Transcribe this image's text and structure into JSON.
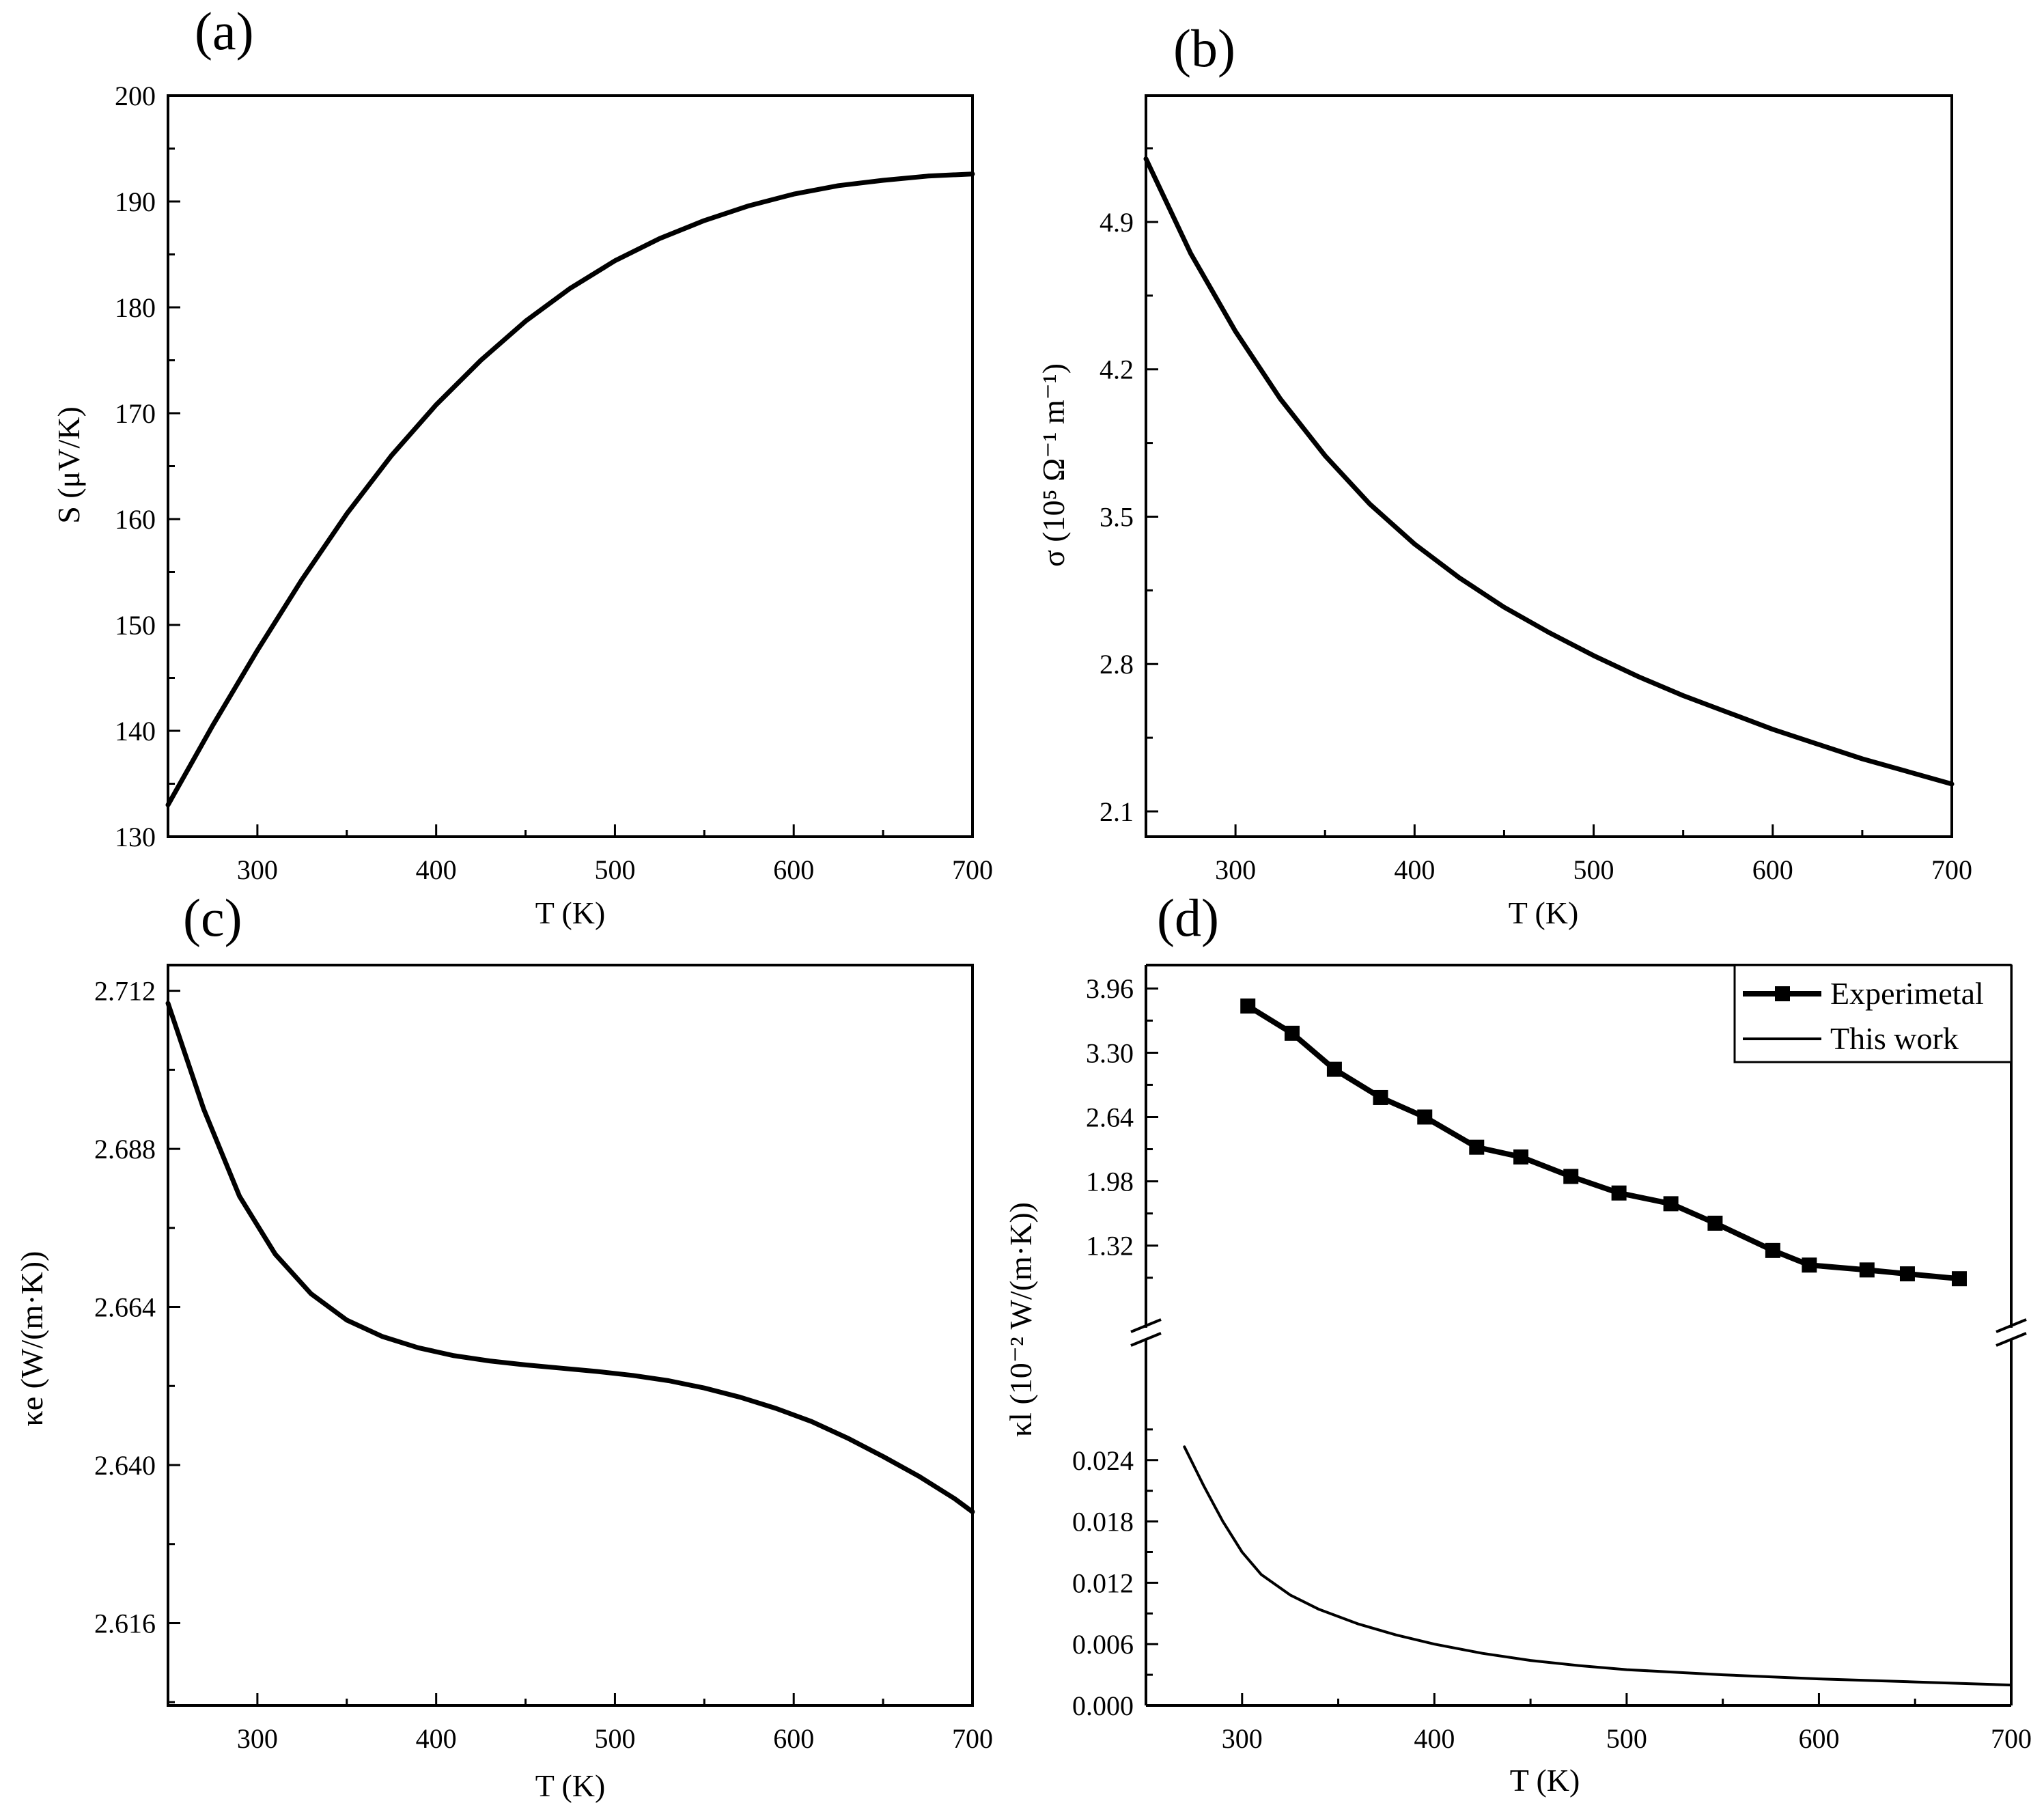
{
  "figure": {
    "background": "#ffffff",
    "line_color": "#000000"
  },
  "chart_data": [
    {
      "panel": "(a)",
      "type": "line",
      "title": "",
      "xlabel": "T (K)",
      "ylabel": "S (μV/K)",
      "xlim": [
        250,
        700
      ],
      "ylim": [
        130,
        200
      ],
      "xticks": [
        "300",
        "400",
        "500",
        "600",
        "700"
      ],
      "yticks": [
        "130",
        "140",
        "150",
        "160",
        "170",
        "180",
        "190",
        "200"
      ],
      "series": [
        {
          "name": "S",
          "x": [
            250,
            275,
            300,
            325,
            350,
            375,
            400,
            425,
            450,
            475,
            500,
            525,
            550,
            575,
            600,
            625,
            650,
            675,
            700
          ],
          "y": [
            133.0,
            140.5,
            147.6,
            154.3,
            160.5,
            166.0,
            170.8,
            175.0,
            178.7,
            181.8,
            184.4,
            186.5,
            188.2,
            189.6,
            190.7,
            191.5,
            192.0,
            192.4,
            192.6
          ]
        }
      ]
    },
    {
      "panel": "(b)",
      "type": "line",
      "title": "",
      "xlabel": "T (K)",
      "ylabel": "σ (10⁵ Ω⁻¹ m⁻¹)",
      "xlim": [
        250,
        700
      ],
      "ylim": [
        1.98,
        5.5
      ],
      "xticks": [
        "300",
        "400",
        "500",
        "600",
        "700"
      ],
      "yticks": [
        "2.1",
        "2.8",
        "3.5",
        "4.2",
        "4.9"
      ],
      "series": [
        {
          "name": "σ",
          "x": [
            250,
            275,
            300,
            325,
            350,
            375,
            400,
            425,
            450,
            475,
            500,
            525,
            550,
            575,
            600,
            625,
            650,
            675,
            700
          ],
          "y": [
            5.2,
            4.75,
            4.38,
            4.06,
            3.79,
            3.56,
            3.37,
            3.21,
            3.07,
            2.95,
            2.84,
            2.74,
            2.65,
            2.57,
            2.49,
            2.42,
            2.35,
            2.29,
            2.23
          ]
        }
      ]
    },
    {
      "panel": "(c)",
      "type": "line",
      "title": "",
      "xlabel": "T (K)",
      "ylabel": "κe (W/(m·K))",
      "xlim": [
        250,
        700
      ],
      "ylim": [
        2.6035,
        2.7159
      ],
      "xticks": [
        "300",
        "400",
        "500",
        "600",
        "700"
      ],
      "yticks": [
        "2.616",
        "2.640",
        "2.664",
        "2.688",
        "2.712"
      ],
      "series": [
        {
          "name": "κe",
          "x": [
            250,
            270,
            290,
            310,
            330,
            350,
            370,
            390,
            410,
            430,
            450,
            470,
            490,
            510,
            530,
            550,
            570,
            590,
            610,
            630,
            650,
            670,
            690,
            700
          ],
          "y": [
            2.7101,
            2.694,
            2.6808,
            2.672,
            2.666,
            2.662,
            2.6595,
            2.6578,
            2.6566,
            2.6558,
            2.6552,
            2.6547,
            2.6542,
            2.6536,
            2.6528,
            2.6517,
            2.6503,
            2.6486,
            2.6466,
            2.6441,
            2.6413,
            2.6383,
            2.6349,
            2.6329
          ]
        }
      ]
    },
    {
      "panel": "(d)",
      "type": "line",
      "title": "",
      "xlabel": "T (K)",
      "ylabel": "κl (10⁻² W/(m·K))",
      "xlim": [
        250,
        700
      ],
      "axis_break": true,
      "lower_ylim": [
        0,
        0.0312
      ],
      "upper_ylim": [
        0.75,
        4.2
      ],
      "xticks": [
        "300",
        "400",
        "500",
        "600",
        "700"
      ],
      "lower_yticks": [
        "0.000",
        "0.006",
        "0.012",
        "0.018",
        "0.024"
      ],
      "upper_yticks": [
        "1.32",
        "1.98",
        "2.64",
        "3.30",
        "3.96"
      ],
      "legend": {
        "position": "top-right",
        "entries": [
          "Experimetal",
          "This work"
        ]
      },
      "series": [
        {
          "name": "Experimetal",
          "marker": "square",
          "segment": "upper",
          "x": [
            303,
            326,
            348,
            372,
            395,
            422,
            445,
            471,
            496,
            523,
            546,
            576,
            595,
            625,
            646,
            673
          ],
          "y": [
            3.78,
            3.5,
            3.13,
            2.84,
            2.64,
            2.33,
            2.23,
            2.03,
            1.86,
            1.75,
            1.55,
            1.27,
            1.12,
            1.07,
            1.03,
            0.98
          ]
        },
        {
          "name": "This work",
          "marker": "none",
          "segment": "lower",
          "x": [
            270,
            280,
            290,
            300,
            310,
            325,
            340,
            360,
            380,
            400,
            425,
            450,
            475,
            500,
            550,
            600,
            650,
            700
          ],
          "y": [
            0.0253,
            0.0215,
            0.018,
            0.015,
            0.0128,
            0.0108,
            0.0094,
            0.008,
            0.0069,
            0.006,
            0.0051,
            0.0044,
            0.0039,
            0.0035,
            0.003,
            0.0026,
            0.0023,
            0.002
          ]
        }
      ]
    }
  ]
}
